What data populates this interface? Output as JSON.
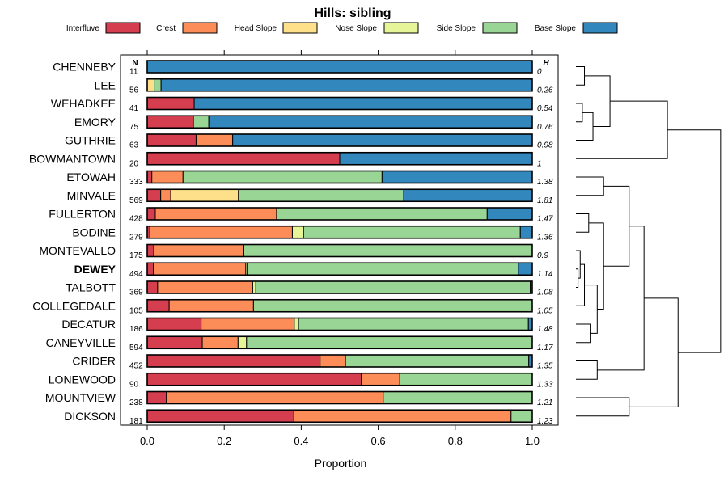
{
  "chart_data": {
    "type": "bar",
    "subtype": "stacked-horizontal-proportion",
    "title": "Hills: sibling",
    "xlabel": "Proportion",
    "ylabel": "",
    "xlim": [
      0,
      1
    ],
    "x_ticks": [
      "0.0",
      "0.2",
      "0.4",
      "0.6",
      "0.8",
      "1.0"
    ],
    "x_tick_values": [
      0,
      0.2,
      0.4,
      0.6,
      0.8,
      1.0
    ],
    "n_header": "N",
    "h_header": "H",
    "legend_position": "top",
    "series": [
      {
        "name": "Interfluve",
        "color": "#d53e4f"
      },
      {
        "name": "Crest",
        "color": "#fc8d59"
      },
      {
        "name": "Head Slope",
        "color": "#fee08b"
      },
      {
        "name": "Nose Slope",
        "color": "#e6f598"
      },
      {
        "name": "Side Slope",
        "color": "#99d594"
      },
      {
        "name": "Base Slope",
        "color": "#3288bd"
      }
    ],
    "rows": [
      {
        "name": "CHENNEBY",
        "n": "11",
        "h": "0",
        "bold": false,
        "values": [
          0,
          0,
          0,
          0,
          0,
          1.0
        ]
      },
      {
        "name": "LEE",
        "n": "56",
        "h": "0.26",
        "bold": false,
        "values": [
          0,
          0,
          0.018,
          0,
          0.018,
          0.964
        ]
      },
      {
        "name": "WEHADKEE",
        "n": "41",
        "h": "0.54",
        "bold": false,
        "values": [
          0.122,
          0,
          0,
          0,
          0,
          0.878
        ]
      },
      {
        "name": "EMORY",
        "n": "75",
        "h": "0.76",
        "bold": false,
        "values": [
          0.12,
          0,
          0,
          0,
          0.04,
          0.84
        ]
      },
      {
        "name": "GUTHRIE",
        "n": "63",
        "h": "0.98",
        "bold": false,
        "values": [
          0.127,
          0.095,
          0,
          0,
          0,
          0.778
        ]
      },
      {
        "name": "BOWMANTOWN",
        "n": "20",
        "h": "1",
        "bold": false,
        "values": [
          0.5,
          0,
          0,
          0,
          0,
          0.5
        ]
      },
      {
        "name": "ETOWAH",
        "n": "333",
        "h": "1.38",
        "bold": false,
        "values": [
          0.012,
          0.081,
          0,
          0,
          0.517,
          0.39
        ]
      },
      {
        "name": "MINVALE",
        "n": "569",
        "h": "1.81",
        "bold": false,
        "values": [
          0.035,
          0.026,
          0.176,
          0,
          0.429,
          0.334
        ]
      },
      {
        "name": "FULLERTON",
        "n": "428",
        "h": "1.47",
        "bold": false,
        "values": [
          0.021,
          0.315,
          0,
          0,
          0.547,
          0.117
        ]
      },
      {
        "name": "BODINE",
        "n": "279",
        "h": "1.36",
        "bold": false,
        "values": [
          0.007,
          0.37,
          0,
          0.029,
          0.563,
          0.031
        ]
      },
      {
        "name": "MONTEVALLO",
        "n": "175",
        "h": "0.9",
        "bold": false,
        "values": [
          0.017,
          0.234,
          0,
          0,
          0.749,
          0
        ]
      },
      {
        "name": "DEWEY",
        "n": "494",
        "h": "1.14",
        "bold": true,
        "values": [
          0.016,
          0.24,
          0,
          0.004,
          0.704,
          0.036
        ]
      },
      {
        "name": "TALBOTT",
        "n": "369",
        "h": "1.08",
        "bold": false,
        "values": [
          0.027,
          0.247,
          0,
          0.008,
          0.713,
          0.005
        ]
      },
      {
        "name": "COLLEGEDALE",
        "n": "105",
        "h": "1.05",
        "bold": false,
        "values": [
          0.057,
          0.219,
          0,
          0,
          0.724,
          0
        ]
      },
      {
        "name": "DECATUR",
        "n": "186",
        "h": "1.48",
        "bold": false,
        "values": [
          0.14,
          0.242,
          0,
          0.011,
          0.597,
          0.01
        ]
      },
      {
        "name": "CANEYVILLE",
        "n": "594",
        "h": "1.17",
        "bold": false,
        "values": [
          0.143,
          0.093,
          0,
          0.022,
          0.742,
          0
        ]
      },
      {
        "name": "CRIDER",
        "n": "452",
        "h": "1.35",
        "bold": false,
        "values": [
          0.449,
          0.066,
          0,
          0,
          0.476,
          0.009
        ]
      },
      {
        "name": "LONEWOOD",
        "n": "90",
        "h": "1.33",
        "bold": false,
        "values": [
          0.556,
          0.1,
          0,
          0,
          0.344,
          0
        ]
      },
      {
        "name": "MOUNTVIEW",
        "n": "238",
        "h": "1.21",
        "bold": false,
        "values": [
          0.05,
          0.563,
          0,
          0,
          0.387,
          0
        ]
      },
      {
        "name": "DICKSON",
        "n": "181",
        "h": "1.23",
        "bold": false,
        "values": [
          0.381,
          0.564,
          0,
          0,
          0.055,
          0
        ]
      }
    ],
    "dendrogram": {
      "leaf_order": [
        "CHENNEBY",
        "LEE",
        "WEHADKEE",
        "EMORY",
        "GUTHRIE",
        "BOWMANTOWN",
        "ETOWAH",
        "MINVALE",
        "FULLERTON",
        "BODINE",
        "MONTEVALLO",
        "DEWEY",
        "TALBOTT",
        "COLLEGEDALE",
        "DECATUR",
        "CANEYVILLE",
        "CRIDER",
        "LONEWOOD",
        "MOUNTVIEW",
        "DICKSON"
      ],
      "merges": [
        {
          "left": "CHENNEBY",
          "right": "LEE",
          "height": 0.04
        },
        {
          "left": "WEHADKEE",
          "right": "EMORY",
          "height": 0.03
        },
        {
          "left": "m2",
          "right": "GUTHRIE",
          "height": 0.08
        },
        {
          "left": "m1",
          "right": "m3",
          "height": 0.16
        },
        {
          "left": "m4",
          "right": "BOWMANTOWN",
          "height": 0.43
        },
        {
          "left": "ETOWAH",
          "right": "MINVALE",
          "height": 0.13
        },
        {
          "left": "FULLERTON",
          "right": "BODINE",
          "height": 0.06
        },
        {
          "left": "DEWEY",
          "right": "TALBOTT",
          "height": 0.01
        },
        {
          "left": "MONTEVALLO",
          "right": "m8",
          "height": 0.02
        },
        {
          "left": "m9",
          "right": "COLLEGEDALE",
          "height": 0.04
        },
        {
          "left": "DECATUR",
          "right": "CANEYVILLE",
          "height": 0.07
        },
        {
          "left": "m10",
          "right": "m11",
          "height": 0.1
        },
        {
          "left": "m7",
          "right": "m12",
          "height": 0.13
        },
        {
          "left": "m6",
          "right": "m13",
          "height": 0.25
        },
        {
          "left": "CRIDER",
          "right": "LONEWOOD",
          "height": 0.1
        },
        {
          "left": "m14",
          "right": "m15",
          "height": 0.32
        },
        {
          "left": "MOUNTVIEW",
          "right": "DICKSON",
          "height": 0.25
        },
        {
          "left": "m16",
          "right": "m17",
          "height": 0.48
        },
        {
          "left": "m5",
          "right": "m18",
          "height": 0.68
        }
      ]
    }
  }
}
